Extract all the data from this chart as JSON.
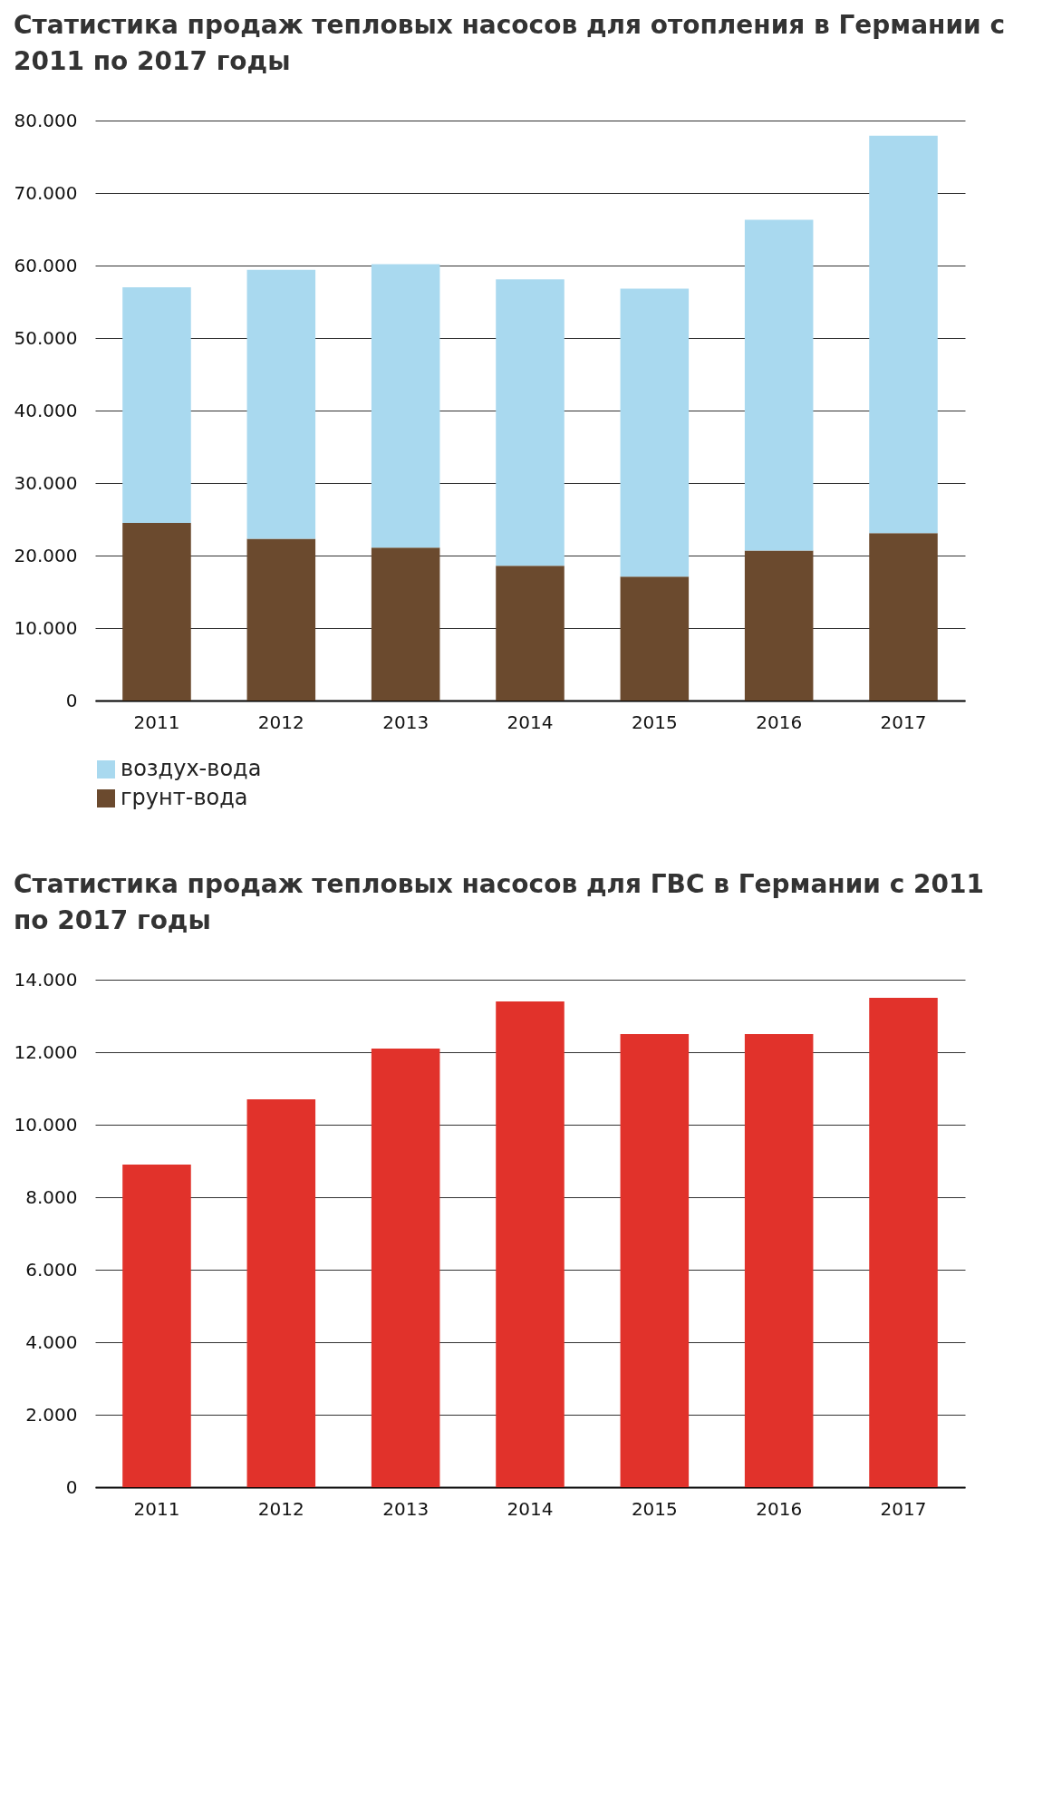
{
  "chart_data": [
    {
      "type": "bar",
      "title": "Статистика продаж тепловых насосов для отопления в Германии с 2011 по 2017 годы",
      "categories": [
        "2011",
        "2012",
        "2013",
        "2014",
        "2015",
        "2016",
        "2017"
      ],
      "stacked": true,
      "series": [
        {
          "name": "грунт-вода",
          "color": "#6b4a2e",
          "values": [
            24500,
            22300,
            21100,
            18600,
            17100,
            20700,
            23100
          ]
        },
        {
          "name": "воздух-вода",
          "color": "#a9d9ef",
          "values": [
            32500,
            37100,
            39100,
            39500,
            39700,
            45600,
            54800
          ]
        }
      ],
      "ylim": [
        0,
        80000
      ],
      "yticks": [
        {
          "value": 0,
          "label": "0"
        },
        {
          "value": 10000,
          "label": "10.000"
        },
        {
          "value": 20000,
          "label": "20.000"
        },
        {
          "value": 30000,
          "label": "30.000"
        },
        {
          "value": 40000,
          "label": "40.000"
        },
        {
          "value": 50000,
          "label": "50.000"
        },
        {
          "value": 60000,
          "label": "60.000"
        },
        {
          "value": 70000,
          "label": "70.000"
        },
        {
          "value": 80000,
          "label": "80.000"
        }
      ],
      "grid": "y",
      "legend": "bottom"
    },
    {
      "type": "bar",
      "title": "Статистика продаж тепловых насосов для ГВС в Германии с 2011 по 2017 годы",
      "categories": [
        "2011",
        "2012",
        "2013",
        "2014",
        "2015",
        "2016",
        "2017"
      ],
      "values": [
        8900,
        10700,
        12100,
        13400,
        12500,
        12500,
        13500
      ],
      "color": "#e1322b",
      "ylim": [
        0,
        14000
      ],
      "yticks": [
        {
          "value": 0,
          "label": "0"
        },
        {
          "value": 2000,
          "label": "2.000"
        },
        {
          "value": 4000,
          "label": "4.000"
        },
        {
          "value": 6000,
          "label": "6.000"
        },
        {
          "value": 8000,
          "label": "8.000"
        },
        {
          "value": 10000,
          "label": "10.000"
        },
        {
          "value": 12000,
          "label": "12.000"
        },
        {
          "value": 14000,
          "label": "14.000"
        }
      ],
      "grid": "y"
    }
  ]
}
